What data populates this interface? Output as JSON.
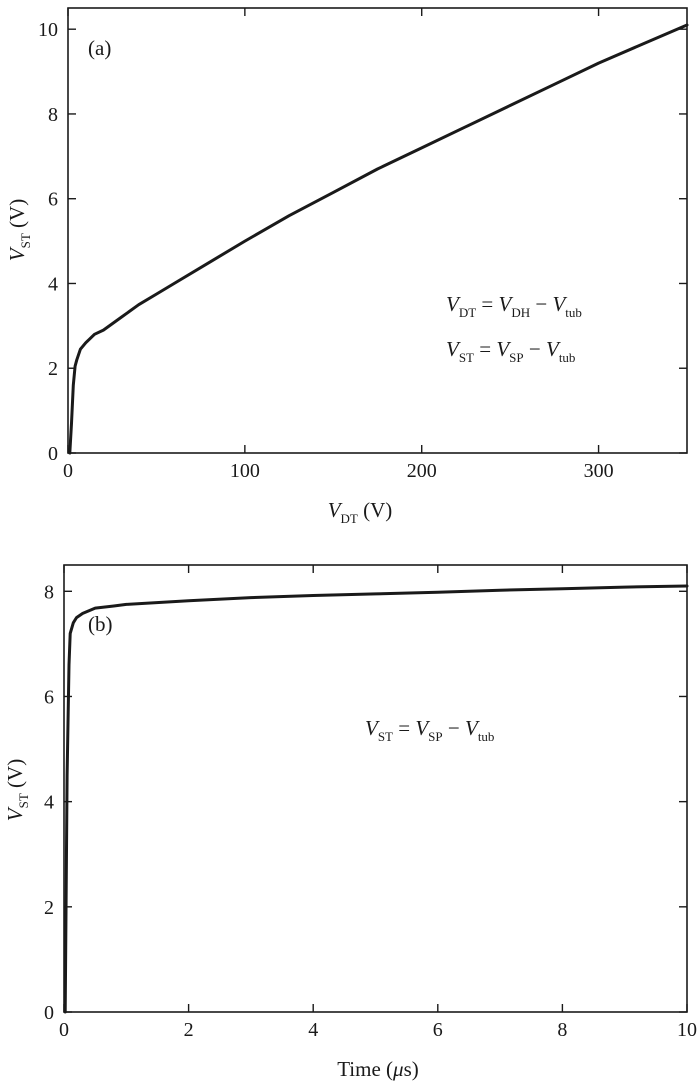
{
  "chart_data": [
    {
      "type": "line",
      "panel_label": "(a)",
      "xlabel": {
        "main": "V",
        "sub": "DT",
        "unit": " (V)"
      },
      "ylabel": {
        "main": "V",
        "sub": "ST",
        "unit": " (V)"
      },
      "xlim": [
        0,
        350
      ],
      "ylim": [
        0,
        10.5
      ],
      "xticks": [
        0,
        100,
        200,
        300
      ],
      "yticks": [
        0,
        2,
        4,
        6,
        8,
        10
      ],
      "grid": false,
      "annotations": [
        {
          "parts": [
            [
              "V",
              "i"
            ],
            [
              "DT",
              "s"
            ],
            [
              " = ",
              "n"
            ],
            [
              "V",
              "i"
            ],
            [
              "DH",
              "s"
            ],
            [
              " − ",
              "n"
            ],
            [
              "V",
              "i"
            ],
            [
              "tub",
              "s"
            ]
          ]
        },
        {
          "parts": [
            [
              "V",
              "i"
            ],
            [
              "ST",
              "s"
            ],
            [
              " = ",
              "n"
            ],
            [
              "V",
              "i"
            ],
            [
              "SP",
              "s"
            ],
            [
              " − ",
              "n"
            ],
            [
              "V",
              "i"
            ],
            [
              "tub",
              "s"
            ]
          ]
        }
      ],
      "series": [
        {
          "x": [
            1,
            2,
            3,
            4,
            5,
            7,
            10,
            15,
            20,
            30,
            40,
            50,
            60,
            80,
            100,
            125,
            150,
            175,
            200,
            225,
            250,
            275,
            300,
            325,
            350
          ],
          "y": [
            0,
            0.7,
            1.6,
            2.05,
            2.2,
            2.45,
            2.6,
            2.8,
            2.9,
            3.2,
            3.5,
            3.75,
            4.0,
            4.5,
            5.0,
            5.6,
            6.15,
            6.7,
            7.2,
            7.7,
            8.2,
            8.7,
            9.2,
            9.65,
            10.1
          ]
        }
      ]
    },
    {
      "type": "line",
      "panel_label": "(b)",
      "xlabel": {
        "main": "Time (",
        "mid": "μ",
        "unit": "s)"
      },
      "ylabel": {
        "main": "V",
        "sub": "ST",
        "unit": " (V)"
      },
      "xlim": [
        0,
        10
      ],
      "ylim": [
        0,
        8.5
      ],
      "xticks": [
        0,
        2,
        4,
        6,
        8,
        10
      ],
      "yticks": [
        0,
        2,
        4,
        6,
        8
      ],
      "grid": false,
      "annotations": [
        {
          "parts": [
            [
              "V",
              "i"
            ],
            [
              "ST",
              "s"
            ],
            [
              " = ",
              "n"
            ],
            [
              "V",
              "i"
            ],
            [
              "SP",
              "s"
            ],
            [
              " − ",
              "n"
            ],
            [
              "V",
              "i"
            ],
            [
              "tub",
              "s"
            ]
          ]
        }
      ],
      "series": [
        {
          "x": [
            0.02,
            0.05,
            0.08,
            0.1,
            0.15,
            0.2,
            0.3,
            0.5,
            0.8,
            1,
            2,
            3,
            4,
            5,
            6,
            7,
            8,
            9,
            10
          ],
          "y": [
            0,
            4.5,
            6.6,
            7.2,
            7.4,
            7.5,
            7.58,
            7.68,
            7.72,
            7.75,
            7.82,
            7.88,
            7.92,
            7.95,
            7.98,
            8.02,
            8.05,
            8.08,
            8.1
          ]
        }
      ]
    }
  ]
}
